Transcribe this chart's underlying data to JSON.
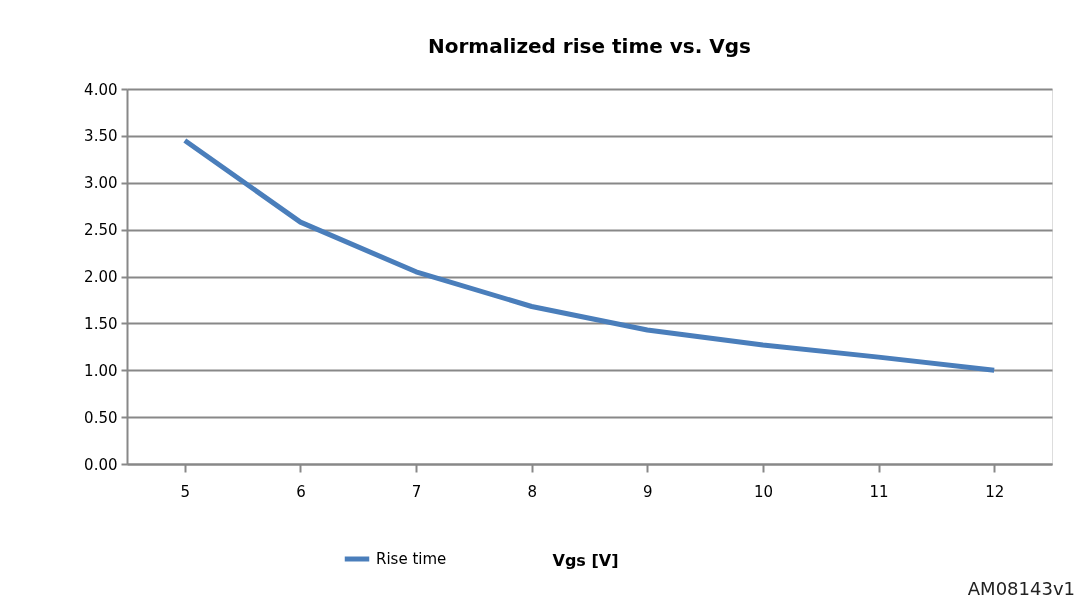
{
  "chart_data": {
    "type": "line",
    "title": "Normalized rise time vs. Vgs",
    "xlabel": "Vgs [V]",
    "categories": [
      "5",
      "6",
      "7",
      "8",
      "9",
      "10",
      "11",
      "12"
    ],
    "series": [
      {
        "name": "Rise time",
        "color": "#4a7ebb",
        "values": [
          3.45,
          2.58,
          2.05,
          1.68,
          1.43,
          1.27,
          1.14,
          1.0
        ]
      }
    ],
    "ylim": [
      0,
      4
    ],
    "yticks": [
      {
        "value": 0,
        "label": "0.00"
      },
      {
        "value": 0.5,
        "label": "0.50"
      },
      {
        "value": 1,
        "label": "1.00"
      },
      {
        "value": 1.5,
        "label": "1.50"
      },
      {
        "value": 2,
        "label": "2.00"
      },
      {
        "value": 2.5,
        "label": "2.50"
      },
      {
        "value": 3,
        "label": "3.00"
      },
      {
        "value": 3.5,
        "label": "3.50"
      },
      {
        "value": 4,
        "label": "4.00"
      }
    ],
    "grid": "y",
    "legend": "bottom",
    "marker": "none",
    "line_style": "solid",
    "annotations": [
      "AM08143v1"
    ]
  }
}
